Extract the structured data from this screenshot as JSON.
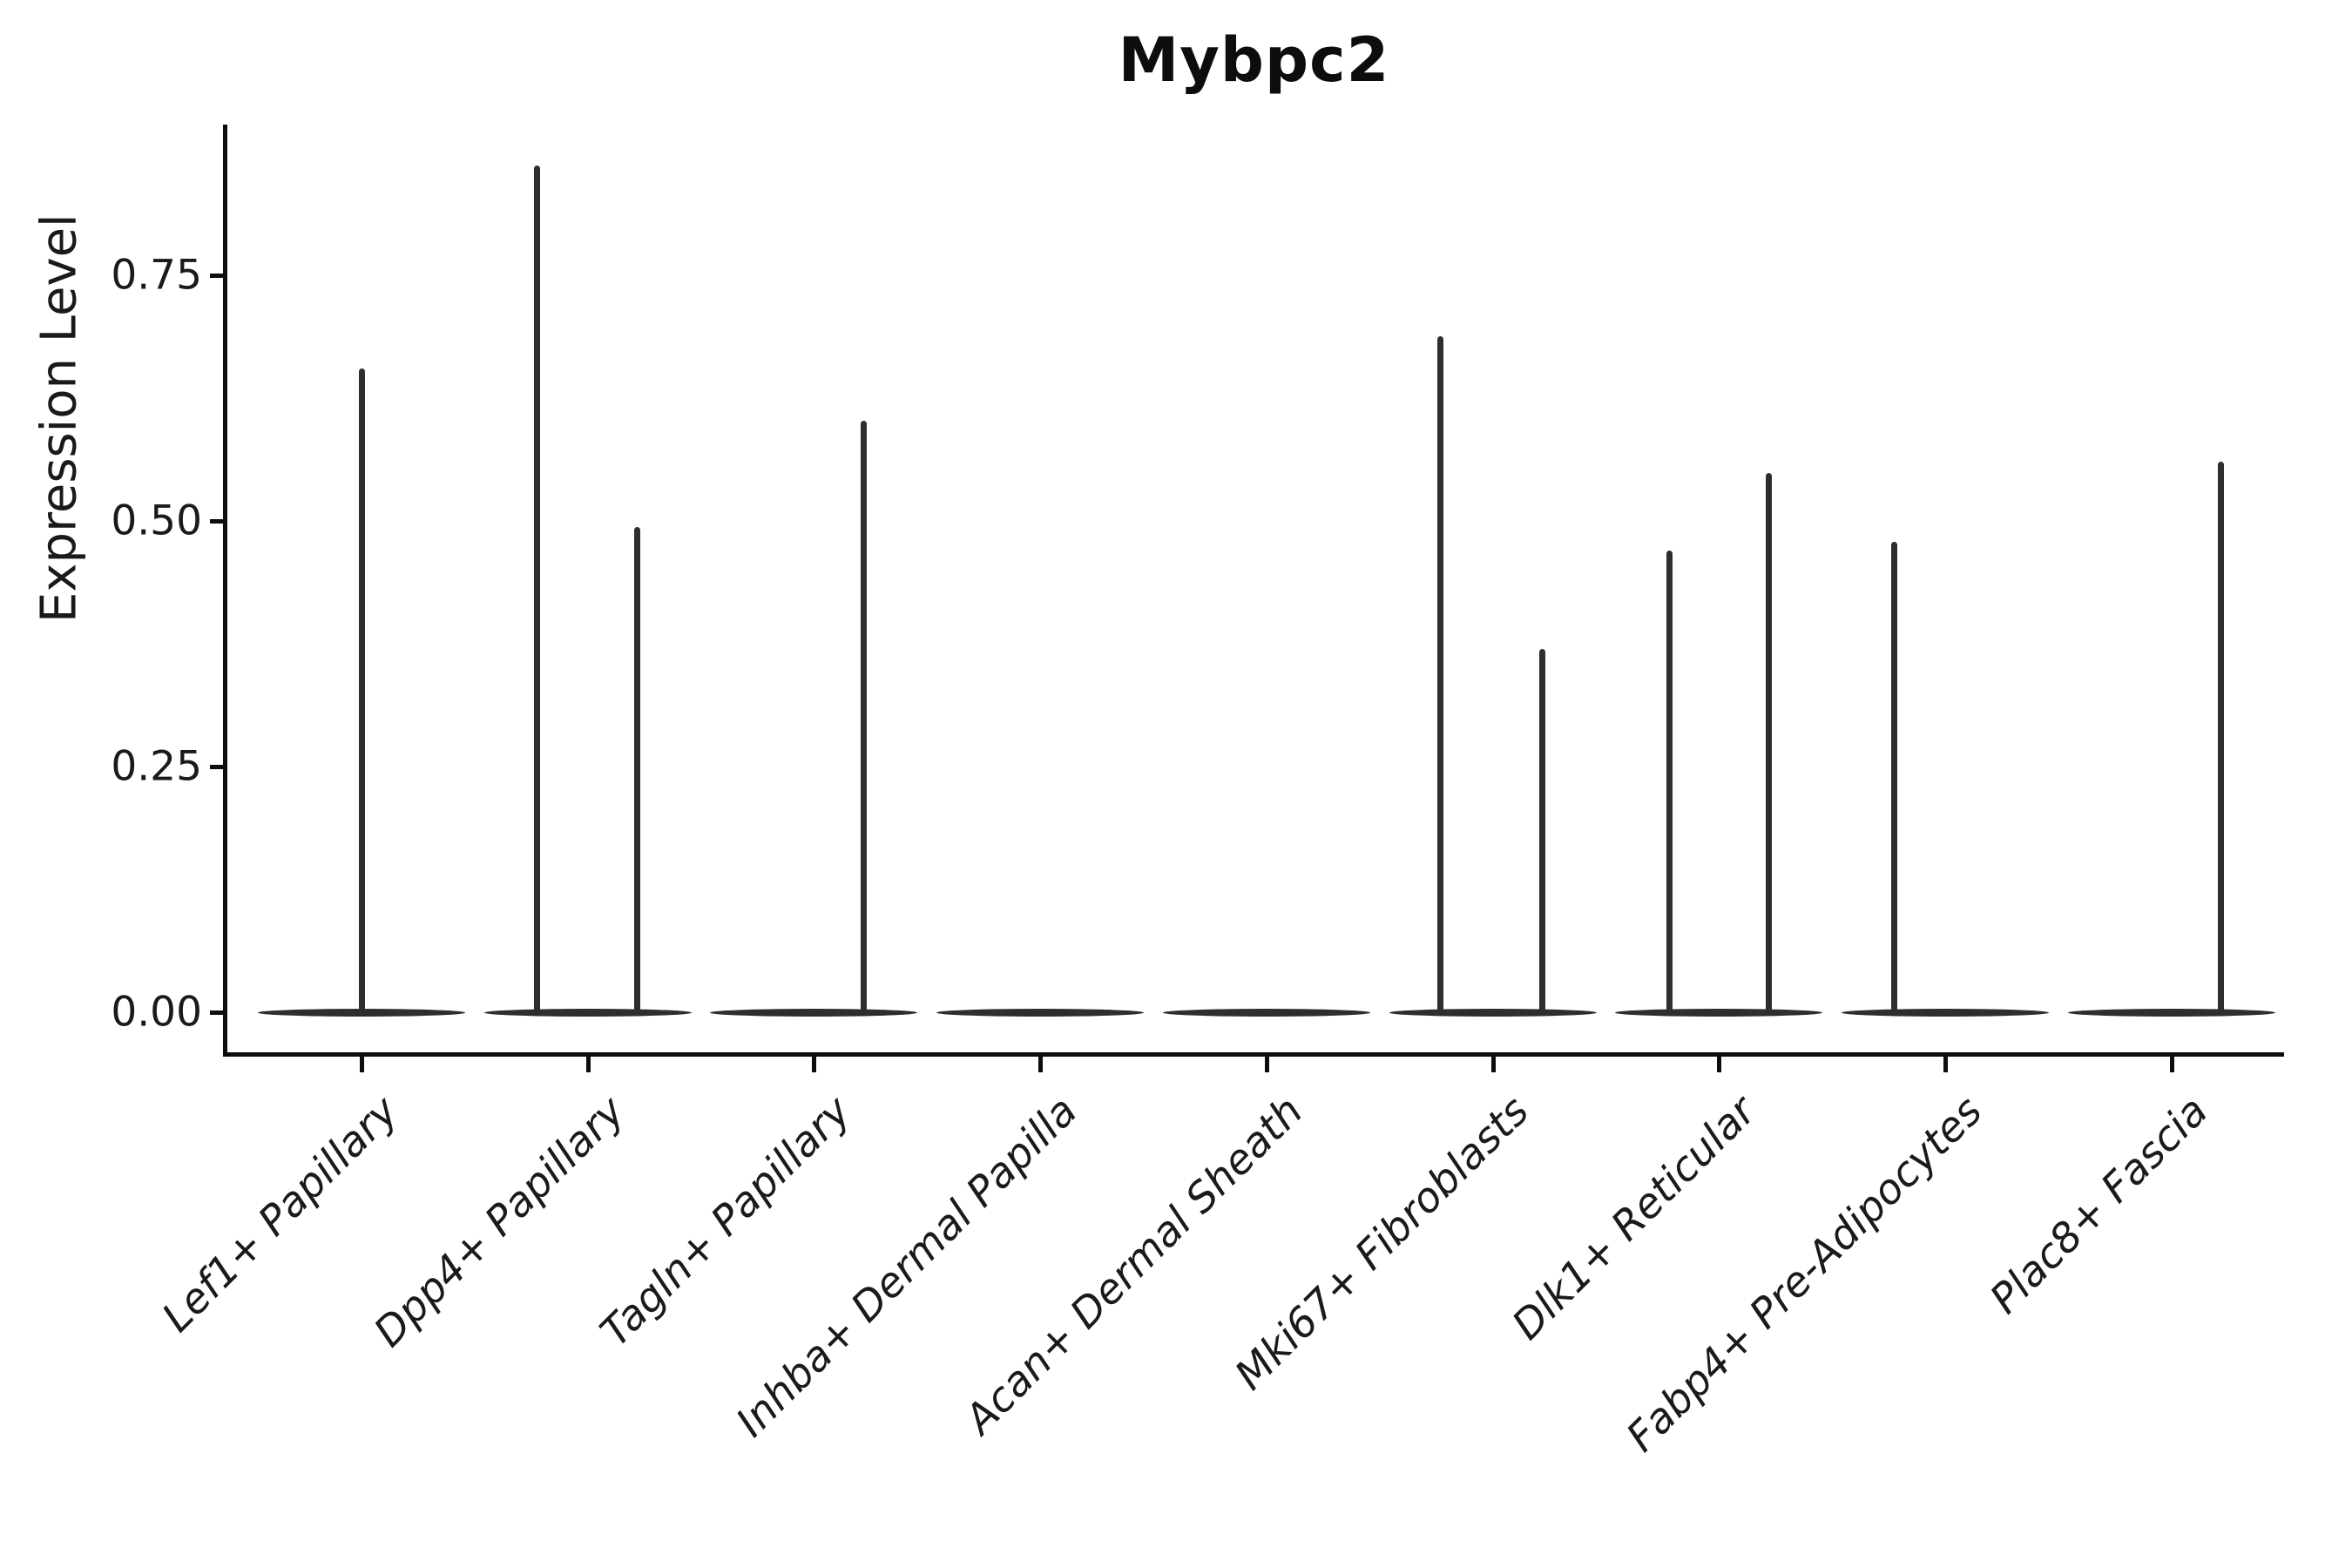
{
  "chart_data": {
    "type": "violin",
    "title": "Mybpc2",
    "xlabel": "",
    "ylabel": "Expression Level",
    "legend": "none",
    "grid": false,
    "ylim": [
      -0.04,
      0.9
    ],
    "yticks": [
      {
        "label": "0.00",
        "value": 0.0
      },
      {
        "label": "0.25",
        "value": 0.25
      },
      {
        "label": "0.50",
        "value": 0.5
      },
      {
        "label": "0.75",
        "value": 0.75
      }
    ],
    "categories": [
      "Lef1+ Papillary",
      "Dpp4+ Papillary",
      "Tagln+ Papillary",
      "Inhba+ Dermal Papilla",
      "Acan+ Dermal Sheath",
      "Mki67+ Fibroblasts",
      "Dlk1+ Reticular",
      "Fabp4+ Pre-Adipocytes",
      "Plac8+ Fascia"
    ],
    "violins": [
      {
        "label": "Lef1+ Papillary",
        "baseline_value": 0.0,
        "spikes": [
          {
            "offset": 0.0,
            "max_value": 0.655
          }
        ]
      },
      {
        "label": "Dpp4+ Papillary",
        "baseline_value": 0.0,
        "spikes": [
          {
            "offset": -0.225,
            "max_value": 0.862
          },
          {
            "offset": 0.22,
            "max_value": 0.494
          }
        ]
      },
      {
        "label": "Tagln+ Papillary",
        "baseline_value": 0.0,
        "spikes": [
          {
            "offset": 0.22,
            "max_value": 0.602
          }
        ]
      },
      {
        "label": "Inhba+ Dermal Papilla",
        "baseline_value": 0.0,
        "spikes": []
      },
      {
        "label": "Acan+ Dermal Sheath",
        "baseline_value": 0.0,
        "spikes": []
      },
      {
        "label": "Mki67+ Fibroblasts",
        "baseline_value": 0.0,
        "spikes": [
          {
            "offset": -0.23,
            "max_value": 0.688
          },
          {
            "offset": 0.22,
            "max_value": 0.37
          }
        ]
      },
      {
        "label": "Dlk1+ Reticular",
        "baseline_value": 0.0,
        "spikes": [
          {
            "offset": -0.22,
            "max_value": 0.47
          },
          {
            "offset": 0.22,
            "max_value": 0.549
          }
        ]
      },
      {
        "label": "Fabp4+ Pre-Adipocytes",
        "baseline_value": 0.0,
        "spikes": [
          {
            "offset": -0.225,
            "max_value": 0.479
          }
        ]
      },
      {
        "label": "Plac8+ Fascia",
        "baseline_value": 0.0,
        "spikes": [
          {
            "offset": 0.22,
            "max_value": 0.56
          }
        ]
      }
    ],
    "colors": {
      "ink": "#0d0d0d",
      "text": "#1a1a1a",
      "violin": "#2e2e2e",
      "background": "#ffffff"
    }
  }
}
